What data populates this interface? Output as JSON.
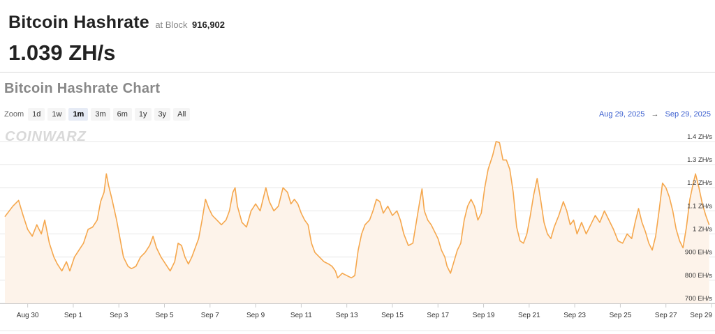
{
  "header": {
    "title": "Bitcoin Hashrate",
    "block_prefix": "at Block",
    "block_number": "916,902",
    "current_value": "1.039 ZH/s"
  },
  "chart_section": {
    "title": "Bitcoin Hashrate Chart",
    "zoom_label": "Zoom",
    "zoom_options": [
      "1d",
      "1w",
      "1m",
      "3m",
      "6m",
      "1y",
      "3y",
      "All"
    ],
    "active_zoom": "1m",
    "range_from": "Aug 29, 2025",
    "range_arrow": "→",
    "range_to": "Sep 29, 2025",
    "watermark": "COINWARZ"
  },
  "colors": {
    "line": "#f5a74d",
    "area": "#fdf3ea",
    "grid": "#e6e6e6",
    "link": "#3b5fcf"
  },
  "chart_data": {
    "type": "area",
    "xlabel": "",
    "ylabel": "",
    "y_unit_labels": [
      "700 EH/s",
      "800 EH/s",
      "900 EH/s",
      "1 ZH/s",
      "1.1 ZH/s",
      "1.2 ZH/s",
      "1.3 ZH/s",
      "1.4 ZH/s"
    ],
    "y_ticks": [
      700,
      800,
      900,
      1000,
      1100,
      1200,
      1300,
      1400
    ],
    "ylim": [
      700,
      1460
    ],
    "xlim": [
      0,
      31
    ],
    "x_tick_labels": [
      "Aug 30",
      "Sep 1",
      "Sep 3",
      "Sep 5",
      "Sep 7",
      "Sep 9",
      "Sep 11",
      "Sep 13",
      "Sep 15",
      "Sep 17",
      "Sep 19",
      "Sep 21",
      "Sep 23",
      "Sep 25",
      "Sep 27",
      "Sep 29"
    ],
    "x_tick_days": [
      1,
      3,
      5,
      7,
      9,
      11,
      13,
      15,
      17,
      19,
      21,
      23,
      25,
      27,
      29,
      31
    ],
    "grid": true,
    "legend": "none",
    "series": [
      {
        "points": [
          [
            0.0,
            1075
          ],
          [
            0.35,
            1120
          ],
          [
            0.6,
            1145
          ],
          [
            0.8,
            1080
          ],
          [
            1.0,
            1020
          ],
          [
            1.2,
            990
          ],
          [
            1.4,
            1040
          ],
          [
            1.6,
            1000
          ],
          [
            1.75,
            1060
          ],
          [
            1.95,
            960
          ],
          [
            2.15,
            900
          ],
          [
            2.3,
            870
          ],
          [
            2.5,
            840
          ],
          [
            2.7,
            880
          ],
          [
            2.85,
            840
          ],
          [
            3.05,
            900
          ],
          [
            3.25,
            930
          ],
          [
            3.45,
            960
          ],
          [
            3.65,
            1020
          ],
          [
            3.85,
            1030
          ],
          [
            4.05,
            1060
          ],
          [
            4.2,
            1140
          ],
          [
            4.35,
            1180
          ],
          [
            4.45,
            1260
          ],
          [
            4.55,
            1210
          ],
          [
            4.7,
            1150
          ],
          [
            4.9,
            1060
          ],
          [
            5.05,
            980
          ],
          [
            5.2,
            900
          ],
          [
            5.4,
            860
          ],
          [
            5.55,
            850
          ],
          [
            5.75,
            860
          ],
          [
            5.95,
            900
          ],
          [
            6.15,
            920
          ],
          [
            6.35,
            950
          ],
          [
            6.5,
            990
          ],
          [
            6.65,
            940
          ],
          [
            6.85,
            900
          ],
          [
            7.05,
            870
          ],
          [
            7.25,
            840
          ],
          [
            7.45,
            880
          ],
          [
            7.6,
            960
          ],
          [
            7.75,
            950
          ],
          [
            7.9,
            900
          ],
          [
            8.05,
            870
          ],
          [
            8.2,
            900
          ],
          [
            8.35,
            940
          ],
          [
            8.5,
            980
          ],
          [
            8.65,
            1060
          ],
          [
            8.8,
            1150
          ],
          [
            8.95,
            1110
          ],
          [
            9.1,
            1080
          ],
          [
            9.3,
            1060
          ],
          [
            9.5,
            1040
          ],
          [
            9.7,
            1060
          ],
          [
            9.85,
            1100
          ],
          [
            10.0,
            1180
          ],
          [
            10.1,
            1200
          ],
          [
            10.2,
            1120
          ],
          [
            10.4,
            1050
          ],
          [
            10.6,
            1030
          ],
          [
            10.8,
            1100
          ],
          [
            11.0,
            1130
          ],
          [
            11.2,
            1100
          ],
          [
            11.35,
            1160
          ],
          [
            11.45,
            1200
          ],
          [
            11.6,
            1140
          ],
          [
            11.8,
            1100
          ],
          [
            12.0,
            1120
          ],
          [
            12.2,
            1200
          ],
          [
            12.4,
            1180
          ],
          [
            12.55,
            1130
          ],
          [
            12.7,
            1150
          ],
          [
            12.85,
            1130
          ],
          [
            13.0,
            1090
          ],
          [
            13.15,
            1060
          ],
          [
            13.3,
            1040
          ],
          [
            13.45,
            960
          ],
          [
            13.6,
            920
          ],
          [
            13.8,
            900
          ],
          [
            14.0,
            880
          ],
          [
            14.2,
            870
          ],
          [
            14.35,
            860
          ],
          [
            14.5,
            840
          ],
          [
            14.6,
            810
          ],
          [
            14.8,
            830
          ],
          [
            15.0,
            820
          ],
          [
            15.2,
            810
          ],
          [
            15.35,
            820
          ],
          [
            15.5,
            930
          ],
          [
            15.65,
            1000
          ],
          [
            15.8,
            1040
          ],
          [
            16.0,
            1060
          ],
          [
            16.15,
            1100
          ],
          [
            16.3,
            1150
          ],
          [
            16.45,
            1140
          ],
          [
            16.6,
            1090
          ],
          [
            16.8,
            1120
          ],
          [
            17.0,
            1080
          ],
          [
            17.2,
            1100
          ],
          [
            17.35,
            1060
          ],
          [
            17.5,
            1000
          ],
          [
            17.7,
            950
          ],
          [
            17.9,
            960
          ],
          [
            18.05,
            1050
          ],
          [
            18.2,
            1140
          ],
          [
            18.3,
            1195
          ],
          [
            18.4,
            1100
          ],
          [
            18.55,
            1060
          ],
          [
            18.7,
            1040
          ],
          [
            18.85,
            1010
          ],
          [
            19.0,
            980
          ],
          [
            19.15,
            930
          ],
          [
            19.3,
            900
          ],
          [
            19.4,
            860
          ],
          [
            19.55,
            830
          ],
          [
            19.7,
            880
          ],
          [
            19.85,
            930
          ],
          [
            20.0,
            960
          ],
          [
            20.15,
            1060
          ],
          [
            20.3,
            1120
          ],
          [
            20.45,
            1150
          ],
          [
            20.6,
            1120
          ],
          [
            20.75,
            1060
          ],
          [
            20.9,
            1090
          ],
          [
            21.05,
            1200
          ],
          [
            21.2,
            1280
          ],
          [
            21.4,
            1340
          ],
          [
            21.55,
            1400
          ],
          [
            21.7,
            1395
          ],
          [
            21.85,
            1320
          ],
          [
            22.0,
            1320
          ],
          [
            22.15,
            1280
          ],
          [
            22.3,
            1180
          ],
          [
            22.45,
            1030
          ],
          [
            22.6,
            970
          ],
          [
            22.75,
            960
          ],
          [
            22.9,
            1000
          ],
          [
            23.05,
            1080
          ],
          [
            23.2,
            1170
          ],
          [
            23.35,
            1240
          ],
          [
            23.5,
            1150
          ],
          [
            23.65,
            1050
          ],
          [
            23.8,
            1000
          ],
          [
            23.95,
            980
          ],
          [
            24.1,
            1030
          ],
          [
            24.3,
            1080
          ],
          [
            24.5,
            1140
          ],
          [
            24.65,
            1100
          ],
          [
            24.8,
            1040
          ],
          [
            24.95,
            1060
          ],
          [
            25.1,
            1000
          ],
          [
            25.3,
            1050
          ],
          [
            25.5,
            1000
          ],
          [
            25.7,
            1040
          ],
          [
            25.9,
            1080
          ],
          [
            26.1,
            1050
          ],
          [
            26.3,
            1100
          ],
          [
            26.5,
            1060
          ],
          [
            26.7,
            1020
          ],
          [
            26.9,
            970
          ],
          [
            27.1,
            960
          ],
          [
            27.3,
            1000
          ],
          [
            27.5,
            980
          ],
          [
            27.65,
            1050
          ],
          [
            27.8,
            1110
          ],
          [
            27.95,
            1050
          ],
          [
            28.1,
            1010
          ],
          [
            28.25,
            960
          ],
          [
            28.4,
            930
          ],
          [
            28.55,
            990
          ],
          [
            28.7,
            1100
          ],
          [
            28.85,
            1220
          ],
          [
            29.0,
            1200
          ],
          [
            29.15,
            1160
          ],
          [
            29.3,
            1100
          ],
          [
            29.45,
            1020
          ],
          [
            29.6,
            970
          ],
          [
            29.75,
            940
          ],
          [
            29.9,
            1030
          ],
          [
            30.05,
            1150
          ],
          [
            30.2,
            1220
          ],
          [
            30.3,
            1260
          ],
          [
            30.45,
            1200
          ],
          [
            30.6,
            1130
          ],
          [
            30.75,
            1080
          ],
          [
            30.9,
            1039
          ]
        ]
      }
    ]
  }
}
